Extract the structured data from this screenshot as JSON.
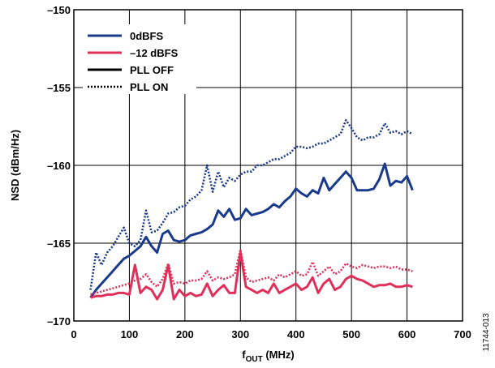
{
  "chart_data": {
    "type": "line",
    "xlabel_main": "f",
    "xlabel_sub": "OUT",
    "xlabel_unit": " (MHz)",
    "ylabel": "NSD (dBm/Hz)",
    "xlim": [
      0,
      700
    ],
    "ylim": [
      -170,
      -150
    ],
    "xticks": [
      0,
      100,
      200,
      300,
      400,
      500,
      600,
      700
    ],
    "yticks": [
      -150,
      -155,
      -160,
      -165,
      -170
    ],
    "xtick_labels": [
      "0",
      "100",
      "200",
      "300",
      "400",
      "500",
      "600",
      "700"
    ],
    "ytick_labels": [
      "–150",
      "–155",
      "–160",
      "–165",
      "–170"
    ],
    "grid": true,
    "legend_position": "top-left",
    "figure_id": "11744-013",
    "legend": [
      {
        "label": "0dBFS",
        "color": "#1a3a8c",
        "style": "solid"
      },
      {
        "label": "–12 dBFS",
        "color": "#e0305a",
        "style": "solid"
      },
      {
        "label": "PLL OFF",
        "color": "#000000",
        "style": "solid"
      },
      {
        "label": "PLL ON",
        "color": "#000000",
        "style": "dotted"
      }
    ],
    "series": [
      {
        "name": "0dBFS PLL ON",
        "color": "#1a3a8c",
        "style": "dotted",
        "x": [
          30,
          40,
          50,
          60,
          70,
          80,
          90,
          100,
          110,
          120,
          130,
          140,
          150,
          160,
          170,
          180,
          190,
          200,
          210,
          220,
          230,
          240,
          250,
          260,
          270,
          280,
          290,
          300,
          310,
          320,
          330,
          340,
          350,
          360,
          370,
          380,
          390,
          400,
          410,
          420,
          430,
          440,
          450,
          460,
          470,
          480,
          490,
          500,
          510,
          520,
          530,
          540,
          550,
          560,
          570,
          580,
          590,
          600,
          610
        ],
        "y": [
          -168.0,
          -165.6,
          -166.4,
          -165.6,
          -165.2,
          -164.6,
          -164.0,
          -165.0,
          -165.2,
          -164.8,
          -162.9,
          -164.3,
          -164.2,
          -163.7,
          -163.1,
          -163.0,
          -162.7,
          -162.6,
          -162.2,
          -162.0,
          -161.6,
          -160.0,
          -161.7,
          -160.4,
          -161.4,
          -160.8,
          -161.0,
          -160.6,
          -160.4,
          -160.4,
          -160.0,
          -160.0,
          -159.8,
          -159.6,
          -159.6,
          -159.4,
          -159.2,
          -158.8,
          -158.8,
          -158.9,
          -158.8,
          -158.6,
          -158.6,
          -158.4,
          -158.2,
          -158.0,
          -157.1,
          -157.6,
          -158.2,
          -158.4,
          -158.2,
          -158.2,
          -158.0,
          -157.3,
          -157.9,
          -157.8,
          -158.0,
          -157.8,
          -158.0
        ]
      },
      {
        "name": "0dBFS PLL OFF",
        "color": "#1a3a8c",
        "style": "solid",
        "x": [
          30,
          40,
          50,
          60,
          70,
          80,
          90,
          100,
          110,
          120,
          130,
          140,
          150,
          160,
          170,
          180,
          190,
          200,
          210,
          220,
          230,
          240,
          250,
          260,
          270,
          280,
          290,
          300,
          310,
          320,
          330,
          340,
          350,
          360,
          370,
          380,
          390,
          400,
          410,
          420,
          430,
          440,
          450,
          460,
          470,
          480,
          490,
          500,
          510,
          520,
          530,
          540,
          550,
          560,
          570,
          580,
          590,
          600,
          610
        ],
        "y": [
          -168.5,
          -168.0,
          -167.6,
          -167.2,
          -166.8,
          -166.4,
          -166.0,
          -165.8,
          -165.5,
          -165.2,
          -164.6,
          -165.2,
          -165.6,
          -164.4,
          -164.2,
          -164.8,
          -164.9,
          -164.8,
          -164.5,
          -164.4,
          -164.3,
          -164.1,
          -163.8,
          -162.9,
          -163.3,
          -162.8,
          -163.5,
          -163.4,
          -162.8,
          -163.2,
          -163.1,
          -163.0,
          -162.8,
          -162.5,
          -162.7,
          -162.3,
          -162.0,
          -161.5,
          -161.8,
          -162.0,
          -161.6,
          -161.8,
          -160.8,
          -161.6,
          -161.2,
          -160.8,
          -160.4,
          -160.8,
          -161.6,
          -161.6,
          -161.6,
          -161.5,
          -160.9,
          -159.9,
          -161.3,
          -161.0,
          -161.1,
          -160.7,
          -161.6
        ]
      },
      {
        "name": "–12 dBFS PLL ON",
        "color": "#e0305a",
        "style": "dotted",
        "x": [
          30,
          40,
          50,
          60,
          70,
          80,
          90,
          100,
          110,
          120,
          130,
          140,
          150,
          160,
          170,
          180,
          190,
          200,
          210,
          220,
          230,
          240,
          250,
          260,
          270,
          280,
          290,
          300,
          310,
          320,
          330,
          340,
          350,
          360,
          370,
          380,
          390,
          400,
          410,
          420,
          430,
          440,
          450,
          460,
          470,
          480,
          490,
          500,
          510,
          520,
          530,
          540,
          550,
          560,
          570,
          580,
          590,
          600,
          610
        ],
        "y": [
          -168.3,
          -168.2,
          -168.1,
          -168.0,
          -167.9,
          -167.8,
          -167.7,
          -167.6,
          -167.4,
          -167.3,
          -167.0,
          -167.5,
          -167.8,
          -167.3,
          -166.3,
          -167.6,
          -167.5,
          -167.6,
          -167.4,
          -167.4,
          -167.3,
          -166.8,
          -167.4,
          -167.2,
          -167.3,
          -167.2,
          -167.0,
          -165.4,
          -167.2,
          -167.5,
          -167.4,
          -167.3,
          -167.2,
          -167.4,
          -167.0,
          -167.2,
          -167.0,
          -166.8,
          -167.1,
          -167.0,
          -166.2,
          -167.1,
          -166.8,
          -166.5,
          -167.0,
          -166.8,
          -166.3,
          -166.5,
          -166.6,
          -166.4,
          -166.5,
          -166.6,
          -166.5,
          -166.5,
          -166.6,
          -166.5,
          -166.7,
          -166.7,
          -166.8
        ]
      },
      {
        "name": "–12 dBFS PLL OFF",
        "color": "#e0305a",
        "style": "solid",
        "x": [
          30,
          40,
          50,
          60,
          70,
          80,
          90,
          100,
          110,
          120,
          130,
          140,
          150,
          160,
          170,
          180,
          190,
          200,
          210,
          220,
          230,
          240,
          250,
          260,
          270,
          280,
          290,
          300,
          310,
          320,
          330,
          340,
          350,
          360,
          370,
          380,
          390,
          400,
          410,
          420,
          430,
          440,
          450,
          460,
          470,
          480,
          490,
          500,
          510,
          520,
          530,
          540,
          550,
          560,
          570,
          580,
          590,
          600,
          610
        ],
        "y": [
          -168.5,
          -168.4,
          -168.4,
          -168.3,
          -168.3,
          -168.2,
          -168.2,
          -168.3,
          -166.4,
          -168.2,
          -167.8,
          -168.0,
          -168.6,
          -168.0,
          -166.4,
          -168.6,
          -168.0,
          -168.4,
          -168.2,
          -168.4,
          -168.3,
          -167.6,
          -168.4,
          -168.0,
          -167.7,
          -168.2,
          -168.2,
          -165.6,
          -167.8,
          -168.0,
          -168.2,
          -168.0,
          -168.2,
          -167.6,
          -168.2,
          -168.0,
          -167.8,
          -167.6,
          -168.0,
          -167.8,
          -167.2,
          -168.2,
          -167.6,
          -167.3,
          -168.0,
          -167.8,
          -167.3,
          -167.1,
          -167.3,
          -167.4,
          -167.6,
          -167.8,
          -167.7,
          -167.7,
          -167.6,
          -167.8,
          -167.8,
          -167.7,
          -167.8
        ]
      }
    ]
  }
}
